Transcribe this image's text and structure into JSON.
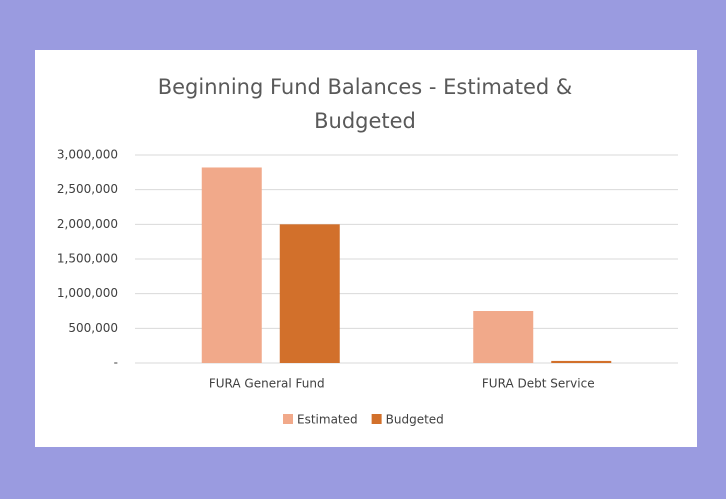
{
  "chart_data": {
    "type": "bar",
    "title": "Beginning Fund Balances - Estimated & Budgeted",
    "categories": [
      "FURA General Fund",
      "FURA Debt Service"
    ],
    "series": [
      {
        "name": "Estimated",
        "color": "#f1a98a",
        "values": [
          2820000,
          750000
        ]
      },
      {
        "name": "Budgeted",
        "color": "#d2702b",
        "values": [
          2000000,
          30000
        ]
      }
    ],
    "ylim": [
      0,
      3000000
    ],
    "yticks": [
      {
        "value": 0,
        "label": "-"
      },
      {
        "value": 500000,
        "label": "500,000"
      },
      {
        "value": 1000000,
        "label": "1,000,000"
      },
      {
        "value": 1500000,
        "label": "1,500,000"
      },
      {
        "value": 2000000,
        "label": "2,000,000"
      },
      {
        "value": 2500000,
        "label": "2,500,000"
      },
      {
        "value": 3000000,
        "label": "3,000,000"
      }
    ],
    "grid": true,
    "legend": "bottom"
  }
}
